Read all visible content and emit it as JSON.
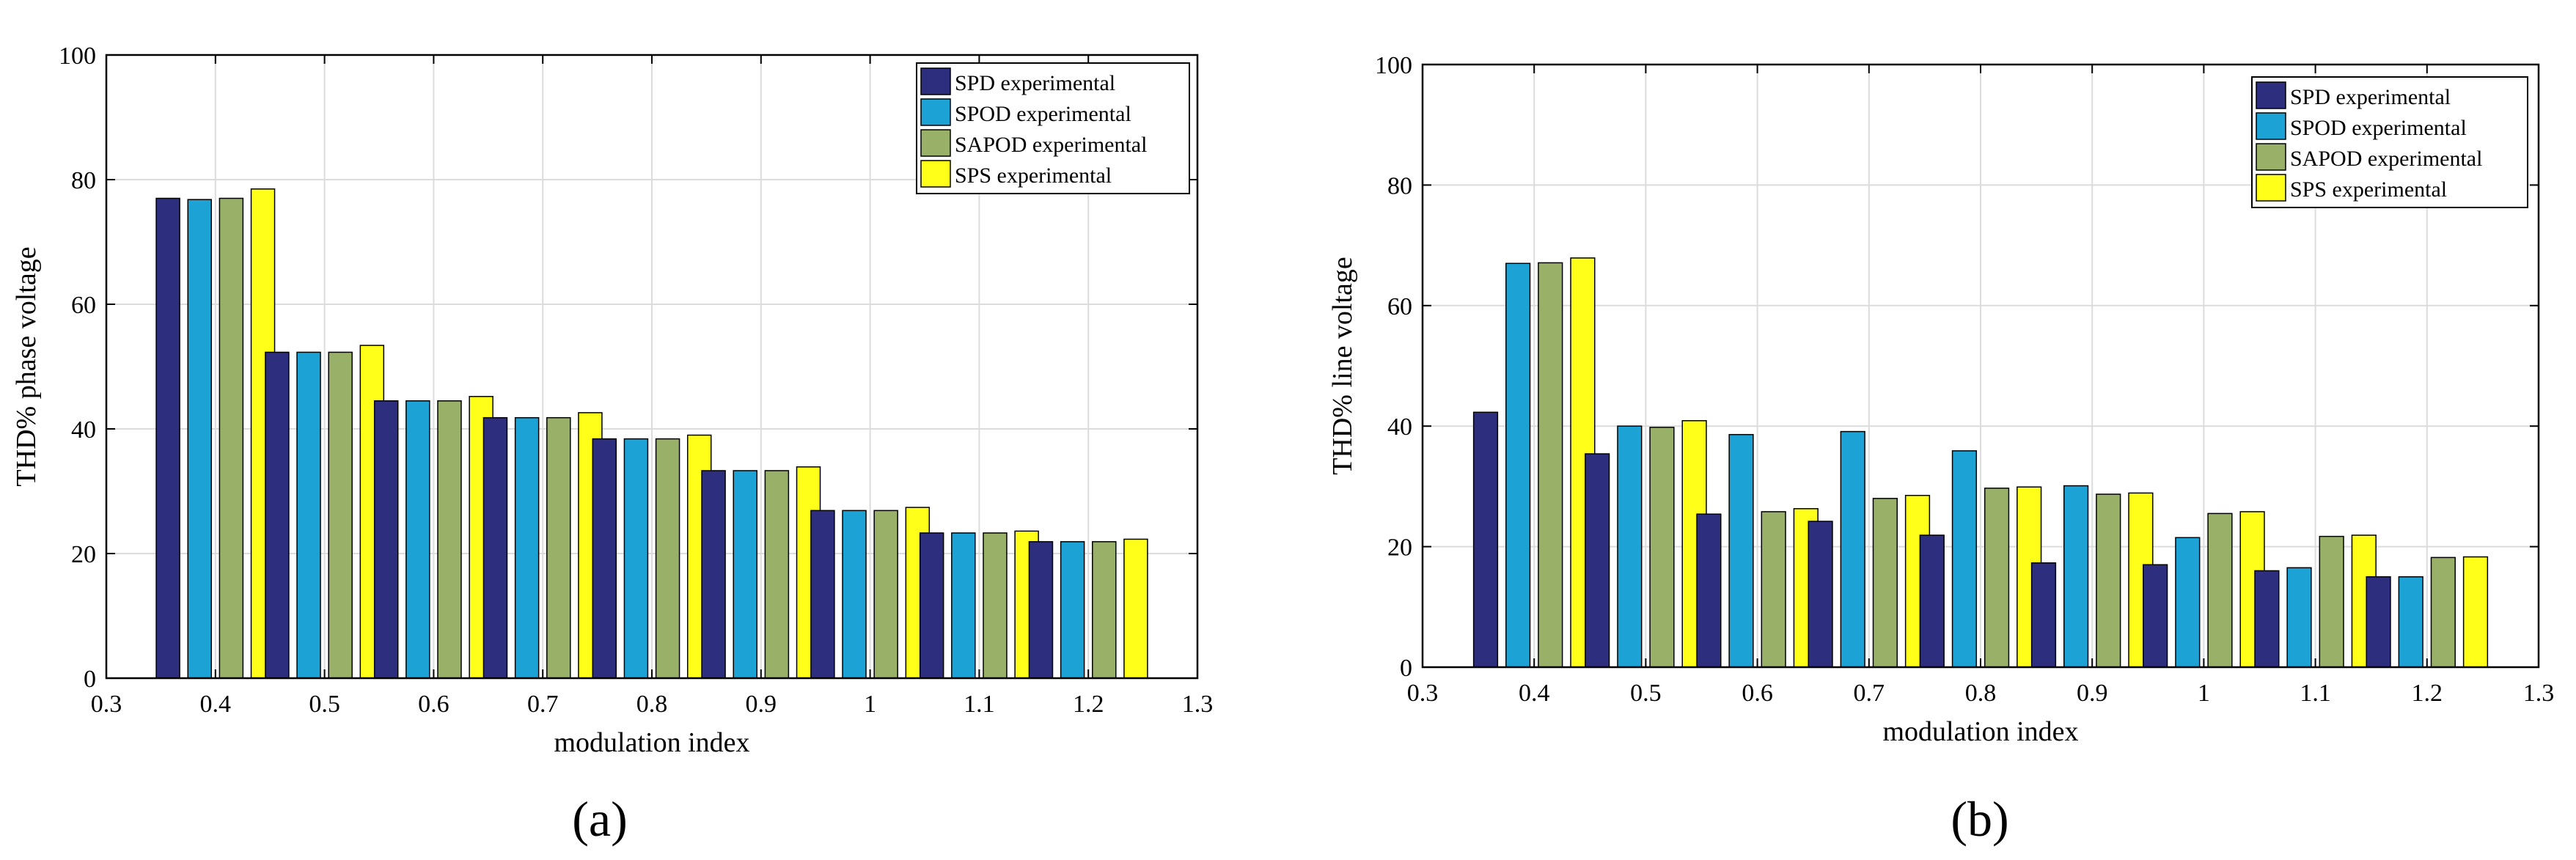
{
  "colors": {
    "series": [
      "#2e2e7e",
      "#1ca2d4",
      "#98b067",
      "#ffff1a"
    ],
    "grid": "#dcdcdc",
    "axis": "#000000",
    "background": "#ffffff"
  },
  "chart_data": [
    {
      "type": "bar",
      "panel_label": "(a)",
      "title": "",
      "xlabel": "modulation index",
      "ylabel": "THD% phase voltage",
      "xlim": [
        0.3,
        1.3
      ],
      "ylim": [
        0,
        100
      ],
      "xticks": [
        "0.3",
        "0.4",
        "0.5",
        "0.6",
        "0.7",
        "0.8",
        "0.9",
        "1",
        "1.1",
        "1.2",
        "1.3"
      ],
      "yticks": [
        "0",
        "20",
        "40",
        "60",
        "80",
        "100"
      ],
      "grid": true,
      "legend_position": "top-right",
      "categories": [
        0.4,
        0.5,
        0.6,
        0.7,
        0.8,
        0.9,
        1.0,
        1.1,
        1.2
      ],
      "series": [
        {
          "name": "SPD experimental",
          "values": [
            77.0,
            52.3,
            44.5,
            41.8,
            38.4,
            33.3,
            26.9,
            23.3,
            21.9
          ]
        },
        {
          "name": "SPOD experimental",
          "values": [
            76.8,
            52.3,
            44.5,
            41.8,
            38.4,
            33.3,
            26.9,
            23.3,
            21.9
          ]
        },
        {
          "name": "SAPOD experimental",
          "values": [
            77.0,
            52.3,
            44.5,
            41.8,
            38.4,
            33.3,
            26.9,
            23.3,
            21.9
          ]
        },
        {
          "name": "SPS experimental",
          "values": [
            78.5,
            53.4,
            45.2,
            42.6,
            39.0,
            33.9,
            27.4,
            23.6,
            22.3
          ]
        }
      ]
    },
    {
      "type": "bar",
      "panel_label": "(b)",
      "title": "",
      "xlabel": "modulation index",
      "ylabel": "THD% line voltage",
      "xlim": [
        0.3,
        1.3
      ],
      "ylim": [
        0,
        100
      ],
      "xticks": [
        "0.3",
        "0.4",
        "0.5",
        "0.6",
        "0.7",
        "0.8",
        "0.9",
        "1",
        "1.1",
        "1.2",
        "1.3"
      ],
      "yticks": [
        "0",
        "20",
        "40",
        "60",
        "80",
        "100"
      ],
      "grid": true,
      "legend_position": "top-right",
      "categories": [
        0.4,
        0.5,
        0.6,
        0.7,
        0.8,
        0.9,
        1.0,
        1.1,
        1.2
      ],
      "series": [
        {
          "name": "SPD experimental",
          "values": [
            42.3,
            35.4,
            25.4,
            24.2,
            21.9,
            17.3,
            17.0,
            16.0,
            15.0
          ]
        },
        {
          "name": "SPOD experimental",
          "values": [
            67.0,
            40.0,
            38.6,
            39.1,
            35.9,
            30.1,
            21.5,
            16.5,
            15.0
          ]
        },
        {
          "name": "SAPOD experimental",
          "values": [
            67.1,
            39.8,
            25.8,
            28.0,
            29.7,
            28.7,
            25.5,
            21.7,
            18.2
          ]
        },
        {
          "name": "SPS experimental",
          "values": [
            67.9,
            40.9,
            26.3,
            28.5,
            29.9,
            28.9,
            25.8,
            21.9,
            18.3
          ]
        }
      ]
    }
  ]
}
